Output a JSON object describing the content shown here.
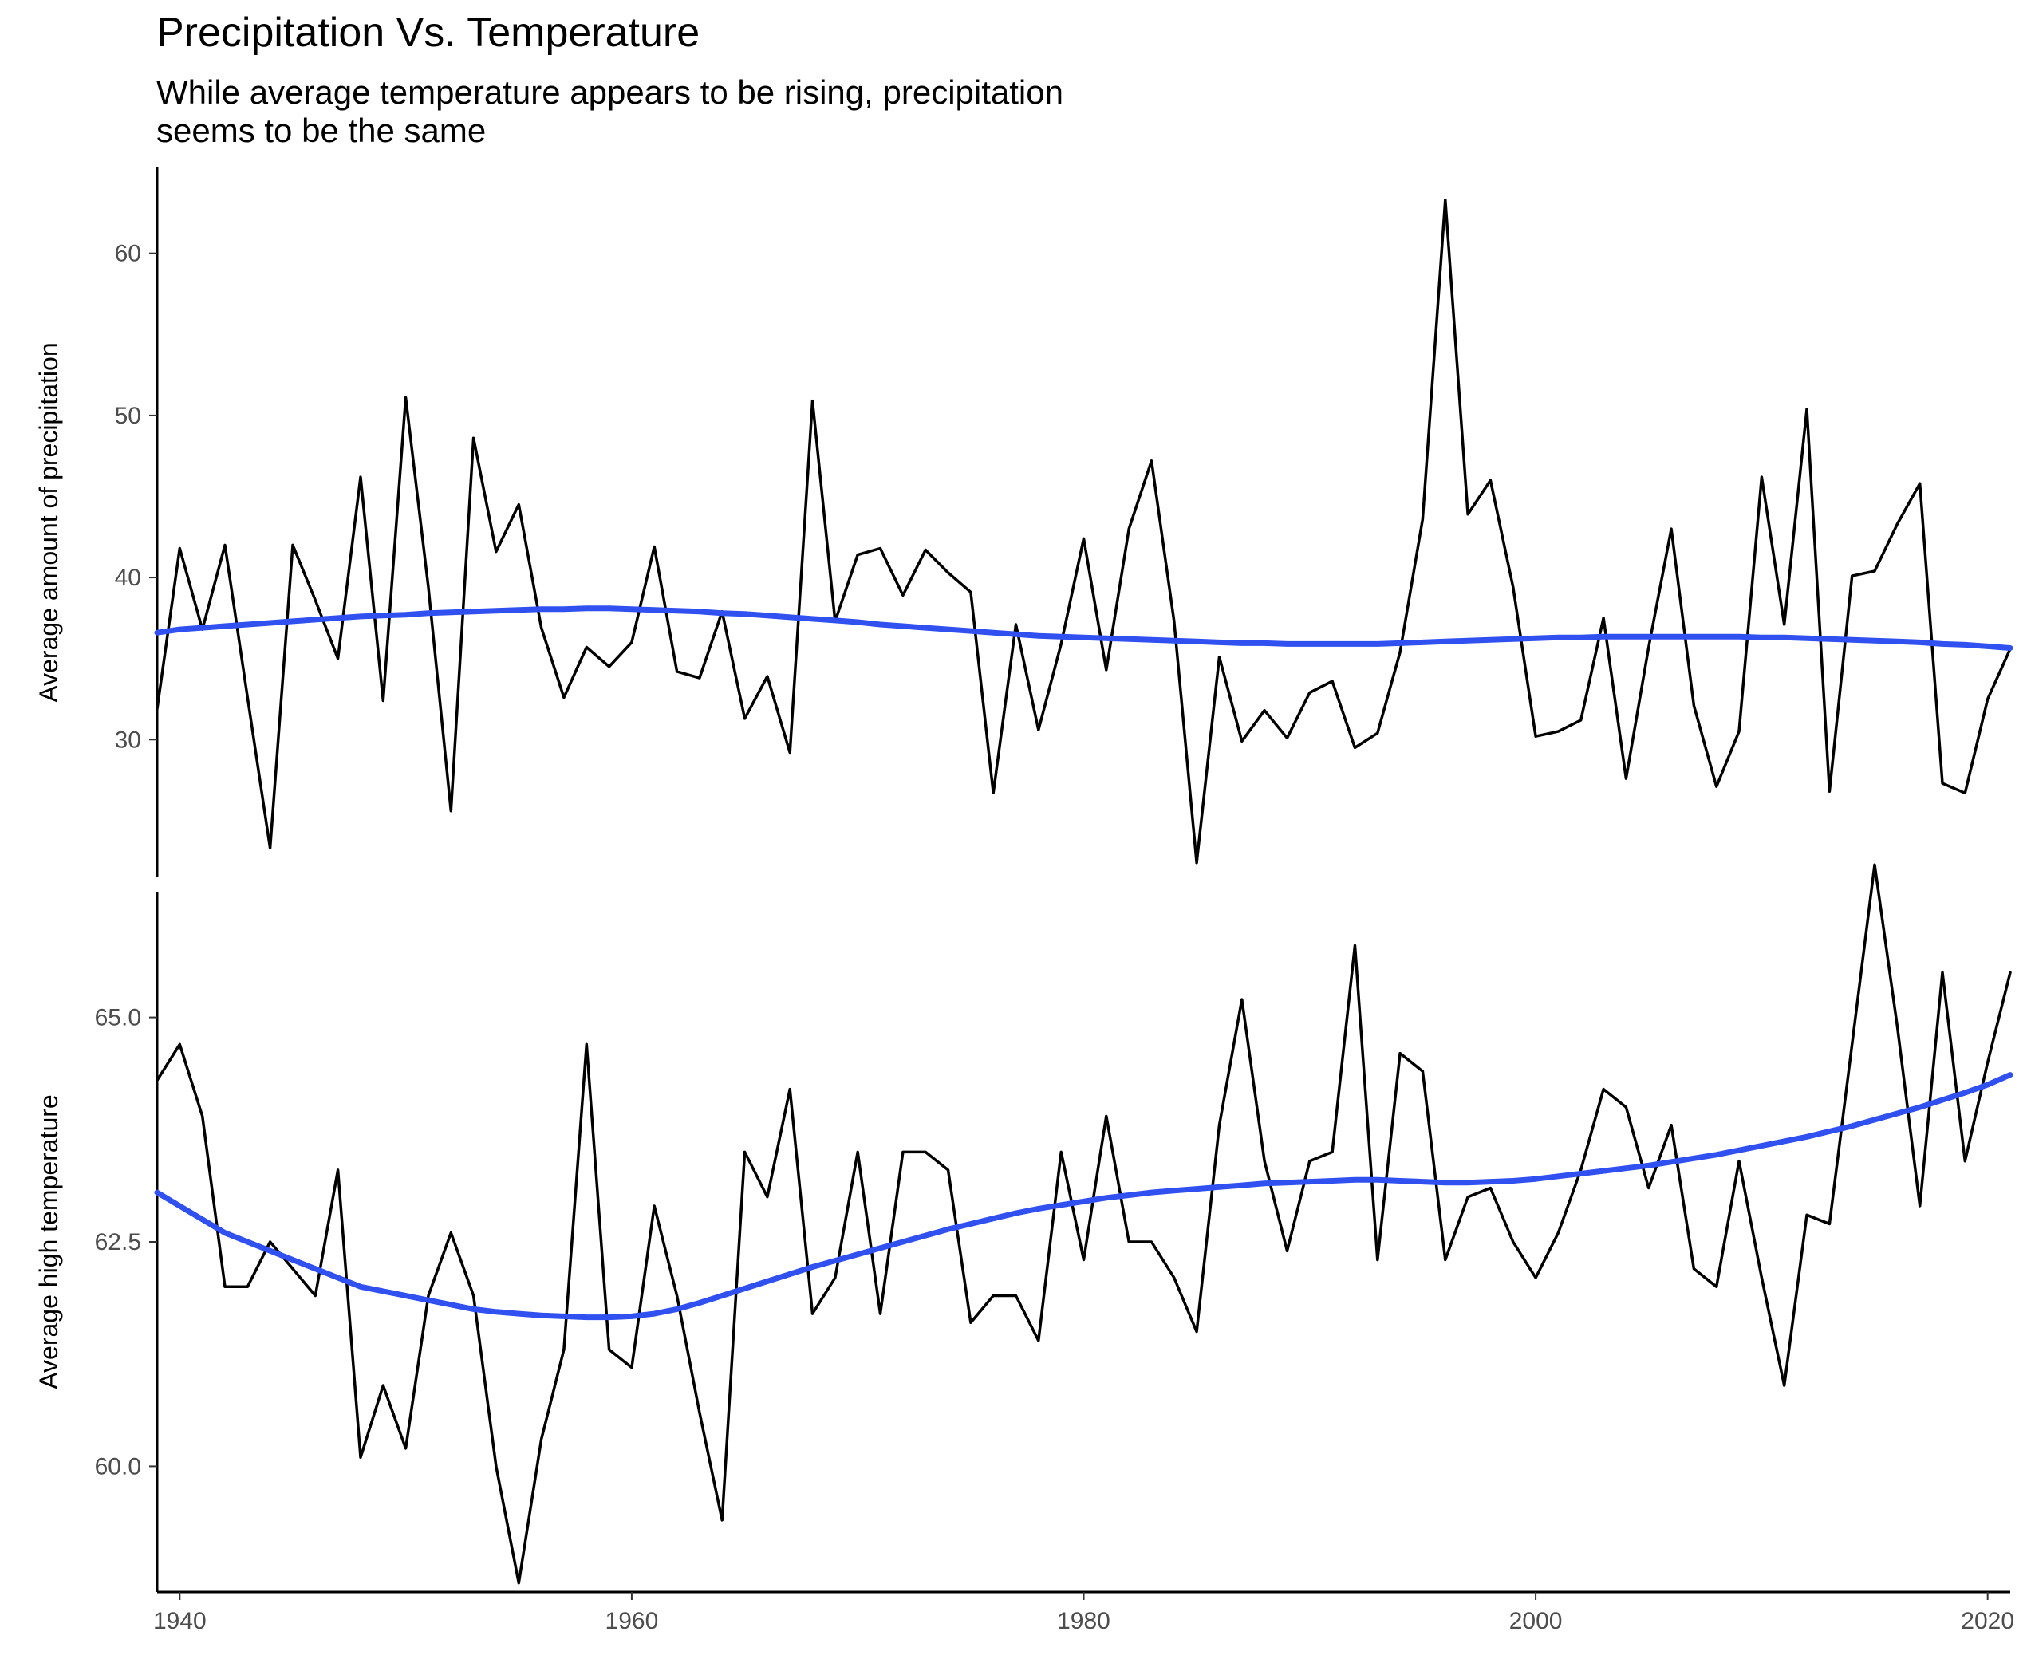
{
  "chart_data": {
    "type": "line",
    "title": "Precipitation Vs. Temperature",
    "subtitle_lines": [
      "While average temperature appears to be rising, precipitation",
      "seems to be the same"
    ],
    "x": [
      1939,
      1940,
      1941,
      1942,
      1943,
      1944,
      1945,
      1946,
      1947,
      1948,
      1949,
      1950,
      1951,
      1952,
      1953,
      1954,
      1955,
      1956,
      1957,
      1958,
      1959,
      1960,
      1961,
      1962,
      1963,
      1964,
      1965,
      1966,
      1967,
      1968,
      1969,
      1970,
      1971,
      1972,
      1973,
      1974,
      1975,
      1976,
      1977,
      1978,
      1979,
      1980,
      1981,
      1982,
      1983,
      1984,
      1985,
      1986,
      1987,
      1988,
      1989,
      1990,
      1991,
      1992,
      1993,
      1994,
      1995,
      1996,
      1997,
      1998,
      1999,
      2000,
      2001,
      2002,
      2003,
      2004,
      2005,
      2006,
      2007,
      2008,
      2009,
      2010,
      2011,
      2012,
      2013,
      2014,
      2015,
      2016,
      2017,
      2018,
      2019,
      2020,
      2021
    ],
    "xlim": [
      1939,
      2021
    ],
    "xticks": [
      "1940",
      "1960",
      "1980",
      "2000",
      "2020"
    ],
    "panels": [
      {
        "ylabel": "Average amount of precipitation",
        "ylim": [
          21.5,
          65.3
        ],
        "yticks": [
          "30",
          "40",
          "50",
          "60"
        ],
        "series": [
          {
            "values": [
              31.9,
              41.8,
              36.8,
              42.0,
              32.6,
              23.3,
              42.0,
              38.6,
              35.0,
              46.2,
              32.4,
              51.1,
              39.4,
              25.6,
              48.6,
              41.6,
              44.5,
              36.9,
              32.6,
              35.7,
              34.5,
              36.0,
              41.9,
              34.2,
              33.8,
              37.9,
              31.3,
              33.9,
              29.2,
              50.9,
              37.3,
              41.4,
              41.8,
              38.9,
              41.7,
              40.3,
              39.1,
              26.7,
              37.1,
              30.6,
              35.9,
              42.4,
              34.3,
              43.0,
              47.2,
              37.3,
              22.4,
              35.1,
              29.9,
              31.8,
              30.1,
              32.9,
              33.6,
              29.5,
              30.4,
              35.4,
              43.6,
              63.3,
              43.9,
              46.0,
              39.4,
              30.2,
              30.5,
              31.2,
              37.5,
              27.6,
              35.7,
              43.0,
              32.1,
              27.1,
              30.5,
              46.2,
              37.1,
              50.4,
              26.8,
              40.1,
              40.4,
              43.3,
              45.8,
              27.3,
              26.7,
              32.5,
              35.6
            ],
            "color": "#000000"
          },
          {
            "values": [
              36.6,
              36.8,
              36.9,
              37.0,
              37.1,
              37.2,
              37.3,
              37.4,
              37.5,
              37.6,
              37.65,
              37.7,
              37.8,
              37.85,
              37.9,
              37.95,
              38.0,
              38.05,
              38.05,
              38.1,
              38.1,
              38.05,
              38.0,
              37.95,
              37.9,
              37.8,
              37.75,
              37.65,
              37.55,
              37.45,
              37.35,
              37.25,
              37.1,
              37.0,
              36.9,
              36.8,
              36.7,
              36.6,
              36.5,
              36.4,
              36.35,
              36.3,
              36.25,
              36.2,
              36.15,
              36.1,
              36.05,
              36.0,
              35.95,
              35.95,
              35.9,
              35.9,
              35.9,
              35.9,
              35.9,
              35.95,
              36.0,
              36.05,
              36.1,
              36.15,
              36.2,
              36.25,
              36.3,
              36.3,
              36.35,
              36.35,
              36.35,
              36.35,
              36.35,
              36.35,
              36.35,
              36.3,
              36.3,
              36.25,
              36.2,
              36.15,
              36.1,
              36.05,
              36.0,
              35.9,
              35.85,
              35.75,
              35.65
            ],
            "color": "#3050f0"
          }
        ]
      },
      {
        "ylabel": "Average high temperature",
        "ylim": [
          58.6,
          66.4
        ],
        "yticks": [
          "60.0",
          "62.5",
          "65.0"
        ],
        "series": [
          {
            "values": [
              64.3,
              64.7,
              63.9,
              62.0,
              62.0,
              62.5,
              62.2,
              61.9,
              63.3,
              60.1,
              60.9,
              60.2,
              61.9,
              62.6,
              61.9,
              60.0,
              58.7,
              60.3,
              61.3,
              64.7,
              61.3,
              61.1,
              62.9,
              61.9,
              60.6,
              59.4,
              63.5,
              63.0,
              64.2,
              61.7,
              62.1,
              63.5,
              61.7,
              63.5,
              63.5,
              63.3,
              61.6,
              61.9,
              61.9,
              61.4,
              63.5,
              62.3,
              63.9,
              62.5,
              62.5,
              62.1,
              61.5,
              63.8,
              65.2,
              63.4,
              62.4,
              63.4,
              63.5,
              65.8,
              62.3,
              64.6,
              64.4,
              62.3,
              63.0,
              63.1,
              62.5,
              62.1,
              62.6,
              63.3,
              64.2,
              64.0,
              63.1,
              63.8,
              62.2,
              62.0,
              63.4,
              62.1,
              60.9,
              62.8,
              62.7,
              64.7,
              66.7,
              64.9,
              62.9,
              65.5,
              63.4,
              64.5,
              65.5
            ],
            "color": "#000000"
          },
          {
            "values": [
              63.05,
              62.9,
              62.75,
              62.6,
              62.5,
              62.4,
              62.3,
              62.2,
              62.1,
              62.0,
              61.95,
              61.9,
              61.85,
              61.8,
              61.75,
              61.72,
              61.7,
              61.68,
              61.67,
              61.66,
              61.66,
              61.67,
              61.7,
              61.75,
              61.82,
              61.9,
              61.98,
              62.06,
              62.14,
              62.22,
              62.29,
              62.36,
              62.43,
              62.5,
              62.57,
              62.64,
              62.7,
              62.76,
              62.82,
              62.87,
              62.91,
              62.95,
              62.99,
              63.02,
              63.05,
              63.07,
              63.09,
              63.11,
              63.13,
              63.15,
              63.16,
              63.17,
              63.18,
              63.19,
              63.19,
              63.18,
              63.17,
              63.16,
              63.16,
              63.17,
              63.18,
              63.2,
              63.23,
              63.26,
              63.29,
              63.32,
              63.35,
              63.39,
              63.43,
              63.47,
              63.52,
              63.57,
              63.62,
              63.67,
              63.73,
              63.79,
              63.86,
              63.93,
              64.0,
              64.08,
              64.16,
              64.25,
              64.36
            ],
            "color": "#3050f0"
          }
        ]
      }
    ]
  }
}
